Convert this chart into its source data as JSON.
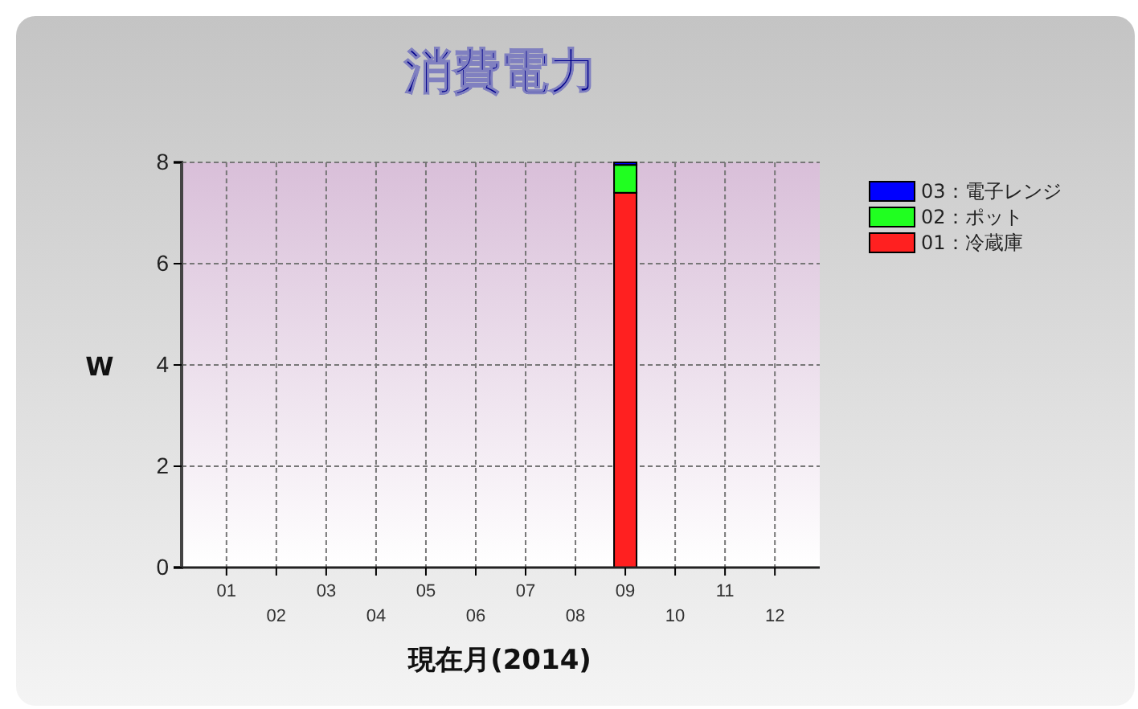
{
  "chart_data": {
    "type": "bar",
    "title": "消費電力",
    "xlabel": "現在月(2014)",
    "ylabel": "W",
    "categories": [
      "01",
      "02",
      "03",
      "04",
      "05",
      "06",
      "07",
      "08",
      "09",
      "10",
      "11",
      "12"
    ],
    "series": [
      {
        "name": "01：冷蔵庫",
        "color": "#ff2020",
        "values": [
          0,
          0,
          0,
          0,
          0,
          0,
          0,
          0,
          7.4,
          0,
          0,
          0
        ]
      },
      {
        "name": "02：ポット",
        "color": "#20ff20",
        "values": [
          0,
          0,
          0,
          0,
          0,
          0,
          0,
          0,
          0.55,
          0,
          0,
          0
        ]
      },
      {
        "name": "03：電子レンジ",
        "color": "#0000ff",
        "values": [
          0,
          0,
          0,
          0,
          0,
          0,
          0,
          0,
          0.05,
          0,
          0,
          0
        ]
      }
    ],
    "stacked": true,
    "ylim": [
      0,
      8
    ],
    "yticks": [
      0,
      2,
      4,
      6,
      8
    ],
    "grid": true,
    "legend": "top right"
  }
}
